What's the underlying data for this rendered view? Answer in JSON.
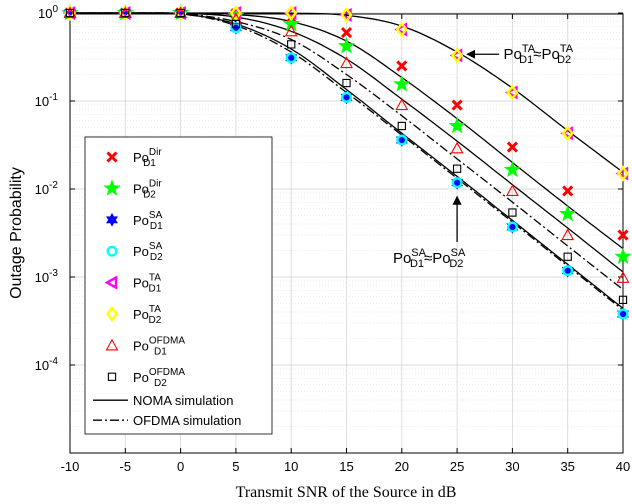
{
  "chart_data": {
    "type": "scatter",
    "xlabel": "Transmit SNR of the Source in dB",
    "ylabel": "Outage Probability",
    "xlim": [
      -10,
      40
    ],
    "ylim": [
      1e-05,
      1.2
    ],
    "yscale": "log",
    "grid": true,
    "legend_position": "left",
    "x_ticks": [
      "-10",
      "-5",
      "0",
      "5",
      "10",
      "15",
      "20",
      "25",
      "30",
      "35",
      "40"
    ],
    "x_tick_values": [
      -10,
      -5,
      0,
      5,
      10,
      15,
      20,
      25,
      30,
      35,
      40
    ],
    "y_ticks": [
      {
        "value": 1,
        "base": "10",
        "exp": "0"
      },
      {
        "value": 0.1,
        "base": "10",
        "exp": "-1"
      },
      {
        "value": 0.01,
        "base": "10",
        "exp": "-2"
      },
      {
        "value": 0.001,
        "base": "10",
        "exp": "-3"
      },
      {
        "value": 0.0001,
        "base": "10",
        "exp": "-4"
      }
    ],
    "x": [
      -10,
      -5,
      0,
      5,
      10,
      15,
      20,
      25,
      30,
      35,
      40
    ],
    "series": [
      {
        "key": "dir1",
        "label": {
          "main": "Po",
          "sup": "Dir",
          "sub": "D1"
        },
        "marker": "x",
        "color": "#ff0000",
        "values": [
          1,
          1,
          1,
          0.98,
          0.88,
          0.6,
          0.25,
          0.09,
          0.03,
          0.0095,
          0.003
        ]
      },
      {
        "key": "dir2",
        "label": {
          "main": "Po",
          "sup": "Dir",
          "sub": "D2"
        },
        "marker": "star5",
        "color": "#00ff00",
        "values": [
          1,
          1,
          1,
          0.93,
          0.75,
          0.42,
          0.155,
          0.052,
          0.0165,
          0.0052,
          0.0017
        ]
      },
      {
        "key": "sa1",
        "label": {
          "main": "Po",
          "sup": "SA",
          "sub": "D1"
        },
        "marker": "hexagram",
        "color": "#0000ff",
        "values": [
          1,
          1,
          0.98,
          0.68,
          0.31,
          0.11,
          0.036,
          0.0118,
          0.0037,
          0.00118,
          0.00038
        ]
      },
      {
        "key": "sa2",
        "label": {
          "main": "Po",
          "sup": "SA",
          "sub": "D2"
        },
        "marker": "circle",
        "color": "#00ffff",
        "values": [
          1,
          1,
          0.98,
          0.68,
          0.31,
          0.11,
          0.036,
          0.0118,
          0.0037,
          0.00118,
          0.00038
        ]
      },
      {
        "key": "ta1",
        "label": {
          "main": "Po",
          "sup": "TA",
          "sub": "D1"
        },
        "marker": "triangle-left",
        "color": "#ff00ff",
        "values": [
          1,
          1,
          1,
          1,
          1,
          0.95,
          0.65,
          0.33,
          0.125,
          0.043,
          0.015
        ]
      },
      {
        "key": "ta2",
        "label": {
          "main": "Po",
          "sup": "TA",
          "sub": "D2"
        },
        "marker": "diamond",
        "color": "#ffff00",
        "values": [
          1,
          1,
          1,
          1,
          1,
          0.95,
          0.65,
          0.33,
          0.125,
          0.043,
          0.015
        ]
      },
      {
        "key": "ofdma1",
        "label": {
          "main": "Po",
          "sup": "OFDMA",
          "sub": "D1"
        },
        "marker": "triangle-up",
        "color": "#ff0000",
        "values": [
          1,
          1,
          1,
          0.85,
          0.62,
          0.27,
          0.09,
          0.029,
          0.0095,
          0.003,
          0.00098
        ]
      },
      {
        "key": "ofdma2",
        "label": {
          "main": "Po",
          "sup": "OFDMA",
          "sub": "D2"
        },
        "marker": "square",
        "color": "#000000",
        "values": [
          1,
          1,
          1,
          0.75,
          0.44,
          0.16,
          0.052,
          0.017,
          0.0054,
          0.0017,
          0.00055
        ]
      }
    ],
    "curves": [
      {
        "style": "solid",
        "values": [
          1,
          1,
          1,
          1,
          0.995,
          0.94,
          0.71,
          0.36,
          0.14,
          0.046,
          0.0155
        ]
      },
      {
        "style": "solid",
        "values": [
          1,
          1,
          0.995,
          0.96,
          0.8,
          0.48,
          0.185,
          0.063,
          0.02,
          0.0064,
          0.0021
        ]
      },
      {
        "style": "solid",
        "values": [
          1,
          1,
          0.99,
          0.9,
          0.62,
          0.3,
          0.105,
          0.035,
          0.0112,
          0.0036,
          0.00114
        ]
      },
      {
        "style": "solid",
        "values": [
          1,
          1,
          0.975,
          0.75,
          0.39,
          0.135,
          0.043,
          0.0139,
          0.0044,
          0.00139,
          0.00044
        ]
      },
      {
        "style": "dashdot",
        "values": [
          1,
          1,
          0.985,
          0.8,
          0.5,
          0.2,
          0.068,
          0.022,
          0.0071,
          0.00225,
          0.00072
        ]
      },
      {
        "style": "dashdot",
        "values": [
          1,
          1,
          0.98,
          0.72,
          0.36,
          0.125,
          0.041,
          0.0132,
          0.0042,
          0.00133,
          0.00042
        ]
      }
    ],
    "line_legend": [
      {
        "style": "solid",
        "label": "NOMA simulation"
      },
      {
        "style": "dashdot",
        "label": "OFDMA simulation"
      }
    ],
    "annotations": [
      {
        "text": {
          "main": "Po",
          "sup1": "TA",
          "sub1": "D1",
          "approx": "≈",
          "sup2": "TA",
          "sub2": "D2"
        },
        "point": [
          25,
          0.33
        ],
        "text_at": [
          30,
          0.36
        ]
      },
      {
        "text": {
          "main": "Po",
          "sup1": "SA",
          "sub1": "D1",
          "approx": "≈",
          "sup2": "SA",
          "sub2": "D2"
        },
        "point": [
          25,
          0.0118
        ],
        "text_at": [
          25,
          0.0012
        ]
      }
    ]
  }
}
